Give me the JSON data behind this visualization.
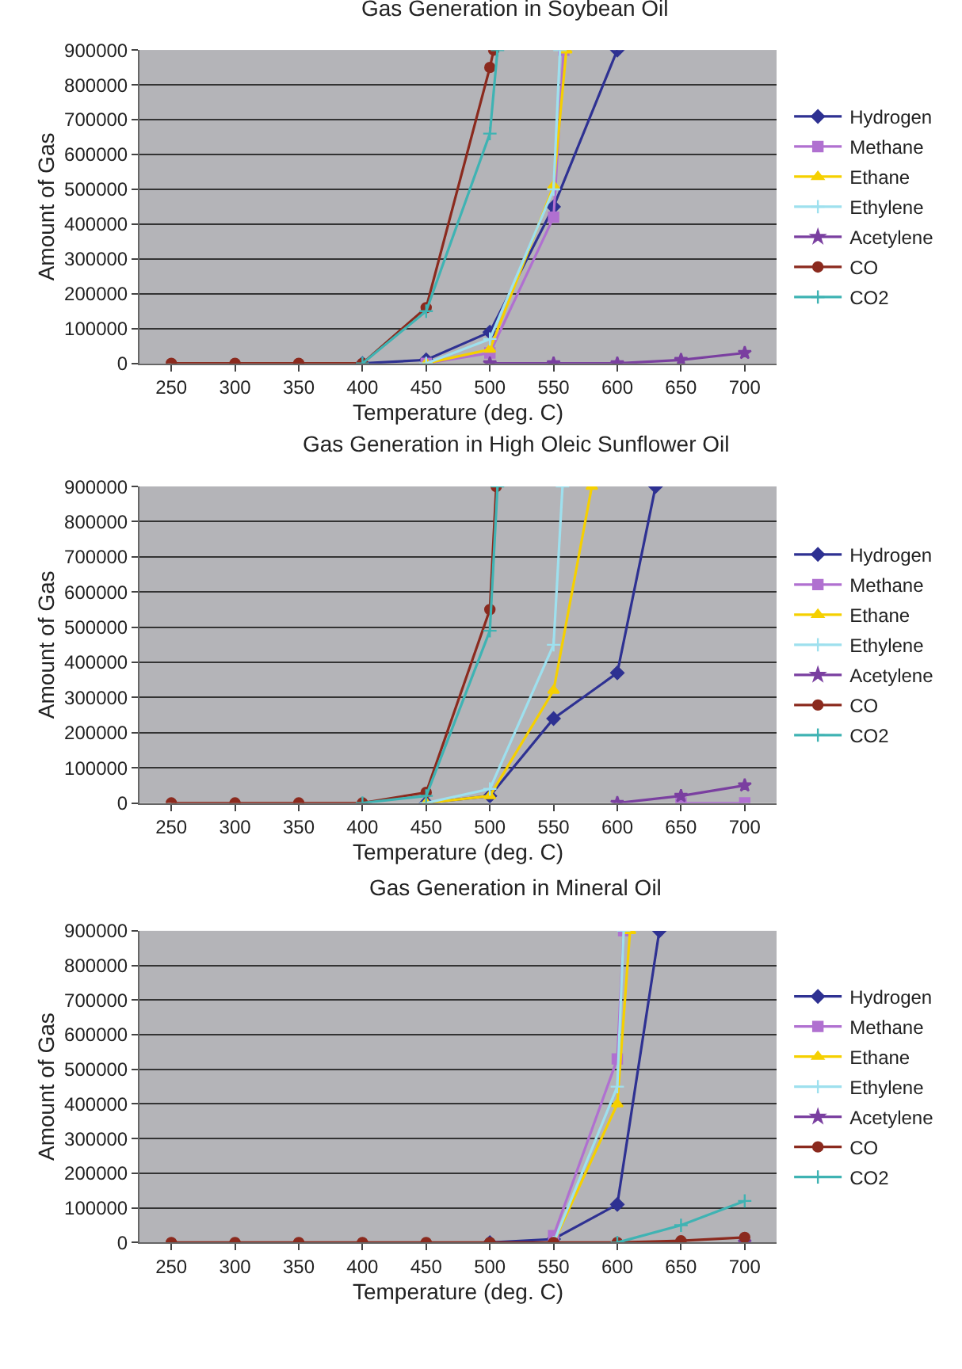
{
  "chart_data": [
    {
      "type": "line",
      "title": "Gas Generation in Soybean Oil",
      "xlabel": "Temperature (deg. C)",
      "ylabel": "Amount of Gas",
      "xlim": [
        225,
        725
      ],
      "xticks": [
        250,
        300,
        350,
        400,
        450,
        500,
        550,
        600,
        650,
        700
      ],
      "ylim": [
        0,
        900000
      ],
      "yticks": [
        0,
        100000,
        200000,
        300000,
        400000,
        500000,
        600000,
        700000,
        800000,
        900000
      ],
      "grid": "y",
      "legend": "right",
      "series": [
        {
          "name": "Hydrogen",
          "color": "#2e3192",
          "marker": "diamond",
          "x": [
            400,
            450,
            500,
            550,
            600
          ],
          "values": [
            0,
            10000,
            90000,
            450000,
            900000
          ]
        },
        {
          "name": "Methane",
          "color": "#b070d0",
          "marker": "square",
          "x": [
            450,
            500,
            550,
            558
          ],
          "values": [
            0,
            30000,
            420000,
            900000
          ]
        },
        {
          "name": "Ethane",
          "color": "#f5d000",
          "marker": "triangle",
          "x": [
            450,
            500,
            550,
            560
          ],
          "values": [
            0,
            40000,
            510000,
            900000
          ]
        },
        {
          "name": "Ethylene",
          "color": "#9ee0ee",
          "marker": "cross",
          "x": [
            450,
            500,
            550,
            555
          ],
          "values": [
            0,
            70000,
            500000,
            900000
          ]
        },
        {
          "name": "Acetylene",
          "color": "#7a3fa0",
          "marker": "star",
          "x": [
            500,
            550,
            600,
            650,
            700
          ],
          "values": [
            0,
            0,
            0,
            10000,
            30000
          ]
        },
        {
          "name": "CO",
          "color": "#8b2a1e",
          "marker": "circle",
          "x": [
            250,
            300,
            350,
            400,
            450,
            500,
            503
          ],
          "values": [
            0,
            0,
            0,
            0,
            160000,
            850000,
            900000
          ]
        },
        {
          "name": "CO2",
          "color": "#3fb3b3",
          "marker": "cross",
          "x": [
            400,
            450,
            500,
            506
          ],
          "values": [
            0,
            150000,
            660000,
            900000
          ]
        }
      ]
    },
    {
      "type": "line",
      "title": "Gas Generation in High Oleic Sunflower Oil",
      "xlabel": "Temperature (deg. C)",
      "ylabel": "Amount of Gas",
      "xlim": [
        225,
        725
      ],
      "xticks": [
        250,
        300,
        350,
        400,
        450,
        500,
        550,
        600,
        650,
        700
      ],
      "ylim": [
        0,
        900000
      ],
      "yticks": [
        0,
        100000,
        200000,
        300000,
        400000,
        500000,
        600000,
        700000,
        800000,
        900000
      ],
      "grid": "y",
      "legend": "right",
      "series": [
        {
          "name": "Hydrogen",
          "color": "#2e3192",
          "marker": "diamond",
          "x": [
            450,
            500,
            550,
            600,
            630
          ],
          "values": [
            0,
            20000,
            240000,
            370000,
            900000
          ]
        },
        {
          "name": "Methane",
          "color": "#b070d0",
          "marker": "square",
          "x": [
            650,
            700
          ],
          "values": [
            0,
            0
          ]
        },
        {
          "name": "Ethane",
          "color": "#f5d000",
          "marker": "triangle",
          "x": [
            450,
            500,
            550,
            580
          ],
          "values": [
            0,
            20000,
            320000,
            900000
          ]
        },
        {
          "name": "Ethylene",
          "color": "#9ee0ee",
          "marker": "cross",
          "x": [
            450,
            500,
            550,
            557
          ],
          "values": [
            0,
            40000,
            450000,
            900000
          ]
        },
        {
          "name": "Acetylene",
          "color": "#7a3fa0",
          "marker": "star",
          "x": [
            600,
            650,
            700
          ],
          "values": [
            0,
            20000,
            50000
          ]
        },
        {
          "name": "CO",
          "color": "#8b2a1e",
          "marker": "circle",
          "x": [
            250,
            300,
            350,
            400,
            450,
            500,
            505
          ],
          "values": [
            0,
            0,
            0,
            0,
            30000,
            550000,
            900000
          ]
        },
        {
          "name": "CO2",
          "color": "#3fb3b3",
          "marker": "cross",
          "x": [
            400,
            450,
            500,
            506
          ],
          "values": [
            0,
            20000,
            490000,
            900000
          ]
        }
      ]
    },
    {
      "type": "line",
      "title": "Gas Generation in Mineral Oil",
      "xlabel": "Temperature (deg. C)",
      "ylabel": "Amount of Gas",
      "xlim": [
        225,
        725
      ],
      "xticks": [
        250,
        300,
        350,
        400,
        450,
        500,
        550,
        600,
        650,
        700
      ],
      "ylim": [
        0,
        900000
      ],
      "yticks": [
        0,
        100000,
        200000,
        300000,
        400000,
        500000,
        600000,
        700000,
        800000,
        900000
      ],
      "grid": "y",
      "legend": "right",
      "series": [
        {
          "name": "Hydrogen",
          "color": "#2e3192",
          "marker": "diamond",
          "x": [
            500,
            550,
            600,
            633
          ],
          "values": [
            0,
            10000,
            110000,
            900000
          ]
        },
        {
          "name": "Methane",
          "color": "#b070d0",
          "marker": "square",
          "x": [
            550,
            600,
            605
          ],
          "values": [
            20000,
            530000,
            900000
          ]
        },
        {
          "name": "Ethane",
          "color": "#f5d000",
          "marker": "triangle",
          "x": [
            550,
            600,
            610
          ],
          "values": [
            0,
            400000,
            900000
          ]
        },
        {
          "name": "Ethylene",
          "color": "#9ee0ee",
          "marker": "cross",
          "x": [
            550,
            600,
            605
          ],
          "values": [
            0,
            450000,
            900000
          ]
        },
        {
          "name": "Acetylene",
          "color": "#7a3fa0",
          "marker": "star",
          "x": [
            700
          ],
          "values": [
            0
          ]
        },
        {
          "name": "CO",
          "color": "#8b2a1e",
          "marker": "circle",
          "x": [
            250,
            300,
            350,
            400,
            450,
            500,
            550,
            600,
            650,
            700
          ],
          "values": [
            0,
            0,
            0,
            0,
            0,
            0,
            0,
            0,
            5000,
            15000
          ]
        },
        {
          "name": "CO2",
          "color": "#3fb3b3",
          "marker": "cross",
          "x": [
            600,
            650,
            700
          ],
          "values": [
            0,
            50000,
            120000
          ]
        }
      ]
    }
  ]
}
